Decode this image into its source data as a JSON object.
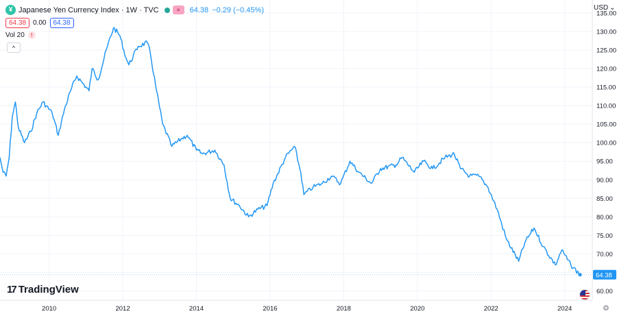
{
  "header": {
    "symbol_badge": "¥",
    "title": "Japanese Yen Currency Index · 1W · TVC",
    "flag_badge": "≡",
    "last_value": "64.38",
    "change": "−0.29 (−0.45%)"
  },
  "trade": {
    "sell": "64.38",
    "spread": "0.00",
    "buy": "64.38"
  },
  "volume": {
    "label": "Vol 20",
    "warning": "!"
  },
  "controls": {
    "collapse": "^",
    "currency": "USD",
    "currency_caret": "⌄",
    "settings": "⚙"
  },
  "branding": {
    "logo_mark": "17",
    "name": "TradingView"
  },
  "chart_data": {
    "type": "line",
    "title": "Japanese Yen Currency Index",
    "series": [
      {
        "color": "#2196f3",
        "points": [
          [
            "2008-09",
            96
          ],
          [
            "2008-10",
            92
          ],
          [
            "2008-11",
            91
          ],
          [
            "2008-12",
            96
          ],
          [
            "2009-01",
            107
          ],
          [
            "2009-02",
            111
          ],
          [
            "2009-03",
            104
          ],
          [
            "2009-05",
            100
          ],
          [
            "2009-07",
            103
          ],
          [
            "2009-09",
            108
          ],
          [
            "2009-11",
            111
          ],
          [
            "2010-02",
            108
          ],
          [
            "2010-04",
            102
          ],
          [
            "2010-06",
            109
          ],
          [
            "2010-08",
            114
          ],
          [
            "2010-10",
            118
          ],
          [
            "2010-12",
            116
          ],
          [
            "2011-02",
            114
          ],
          [
            "2011-03",
            120
          ],
          [
            "2011-05",
            117
          ],
          [
            "2011-08",
            126
          ],
          [
            "2011-10",
            131
          ],
          [
            "2011-12",
            129
          ],
          [
            "2012-02",
            123
          ],
          [
            "2012-03",
            121
          ],
          [
            "2012-06",
            126
          ],
          [
            "2012-09",
            127
          ],
          [
            "2012-10",
            124
          ],
          [
            "2012-12",
            114
          ],
          [
            "2013-02",
            105
          ],
          [
            "2013-05",
            99
          ],
          [
            "2013-08",
            101
          ],
          [
            "2013-10",
            102
          ],
          [
            "2014-01",
            98
          ],
          [
            "2014-03",
            97
          ],
          [
            "2014-07",
            98
          ],
          [
            "2014-10",
            94
          ],
          [
            "2014-12",
            85
          ],
          [
            "2015-03",
            83
          ],
          [
            "2015-06",
            80
          ],
          [
            "2015-09",
            82
          ],
          [
            "2015-12",
            83
          ],
          [
            "2016-02",
            89
          ],
          [
            "2016-06",
            96
          ],
          [
            "2016-09",
            99
          ],
          [
            "2016-11",
            92
          ],
          [
            "2016-12",
            86
          ],
          [
            "2017-03",
            88
          ],
          [
            "2017-06",
            89
          ],
          [
            "2017-09",
            91
          ],
          [
            "2017-12",
            89
          ],
          [
            "2018-03",
            95
          ],
          [
            "2018-06",
            92
          ],
          [
            "2018-10",
            89
          ],
          [
            "2019-01",
            93
          ],
          [
            "2019-06",
            94
          ],
          [
            "2019-08",
            96
          ],
          [
            "2019-12",
            92
          ],
          [
            "2020-03",
            95
          ],
          [
            "2020-06",
            93
          ],
          [
            "2020-10",
            96
          ],
          [
            "2021-01",
            97
          ],
          [
            "2021-03",
            93
          ],
          [
            "2021-06",
            91
          ],
          [
            "2021-09",
            91
          ],
          [
            "2021-12",
            88
          ],
          [
            "2022-03",
            82
          ],
          [
            "2022-06",
            74
          ],
          [
            "2022-10",
            68
          ],
          [
            "2022-12",
            73
          ],
          [
            "2023-03",
            77
          ],
          [
            "2023-06",
            72
          ],
          [
            "2023-10",
            67
          ],
          [
            "2023-12",
            71
          ],
          [
            "2024-03",
            67
          ],
          [
            "2024-06",
            64.38
          ]
        ]
      }
    ],
    "x_range": [
      "2008-09",
      "2024-10"
    ],
    "xticks": [
      "2010",
      "2012",
      "2014",
      "2016",
      "2018",
      "2020",
      "2022",
      "2024"
    ],
    "yticks": [
      "60.00",
      "65.00",
      "70.00",
      "75.00",
      "80.00",
      "85.00",
      "90.00",
      "95.00",
      "100.00",
      "105.00",
      "110.00",
      "115.00",
      "120.00",
      "125.00",
      "130.00",
      "135.00"
    ],
    "ylim": [
      57.5,
      138.5
    ],
    "last_label": "64.38",
    "grid": true,
    "y_axis_side": "right"
  }
}
